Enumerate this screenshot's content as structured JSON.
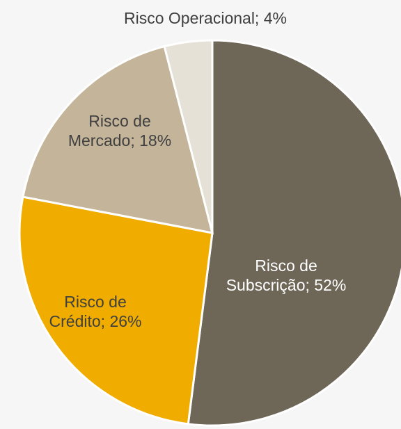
{
  "chart_data": {
    "type": "pie",
    "values": [
      52,
      26,
      18,
      4
    ],
    "value_labels": [
      "Risco de Subscrição; 52%",
      "Risco de Crédito; 26%",
      "Risco de Mercado; 18%",
      "Risco Operacional; 4%"
    ],
    "colors": [
      "#6e6657",
      "#f0ad00",
      "#c4b59a",
      "#e5e1d6"
    ]
  }
}
